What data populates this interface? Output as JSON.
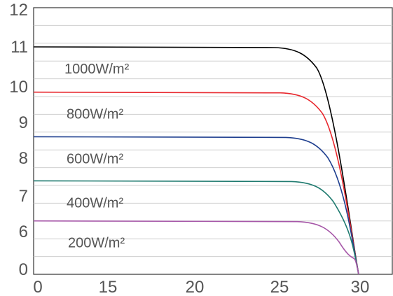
{
  "chart_data": {
    "type": "line",
    "title": "",
    "xlabel": "",
    "ylabel": "",
    "x_ticks": [
      "0",
      "15",
      "20",
      "25",
      "30"
    ],
    "y_ticks": [
      "0",
      "6",
      "7",
      "8",
      "9",
      "10",
      "11",
      "12"
    ],
    "grid": true,
    "series": [
      {
        "name": "1000W/m²",
        "color": "#000000",
        "isc_level": 11.0,
        "voc_tick": 30
      },
      {
        "name": "800W/m²",
        "color": "#e8282e",
        "isc_level": 9.85,
        "voc_tick": 30
      },
      {
        "name": "600W/m²",
        "color": "#1f3f8f",
        "isc_level": 8.6,
        "voc_tick": 30
      },
      {
        "name": "400W/m²",
        "color": "#207b70",
        "isc_level": 7.4,
        "voc_tick": 30
      },
      {
        "name": "200W/m²",
        "color": "#a657a8",
        "isc_level": 6.3,
        "voc_tick": 30
      }
    ]
  }
}
